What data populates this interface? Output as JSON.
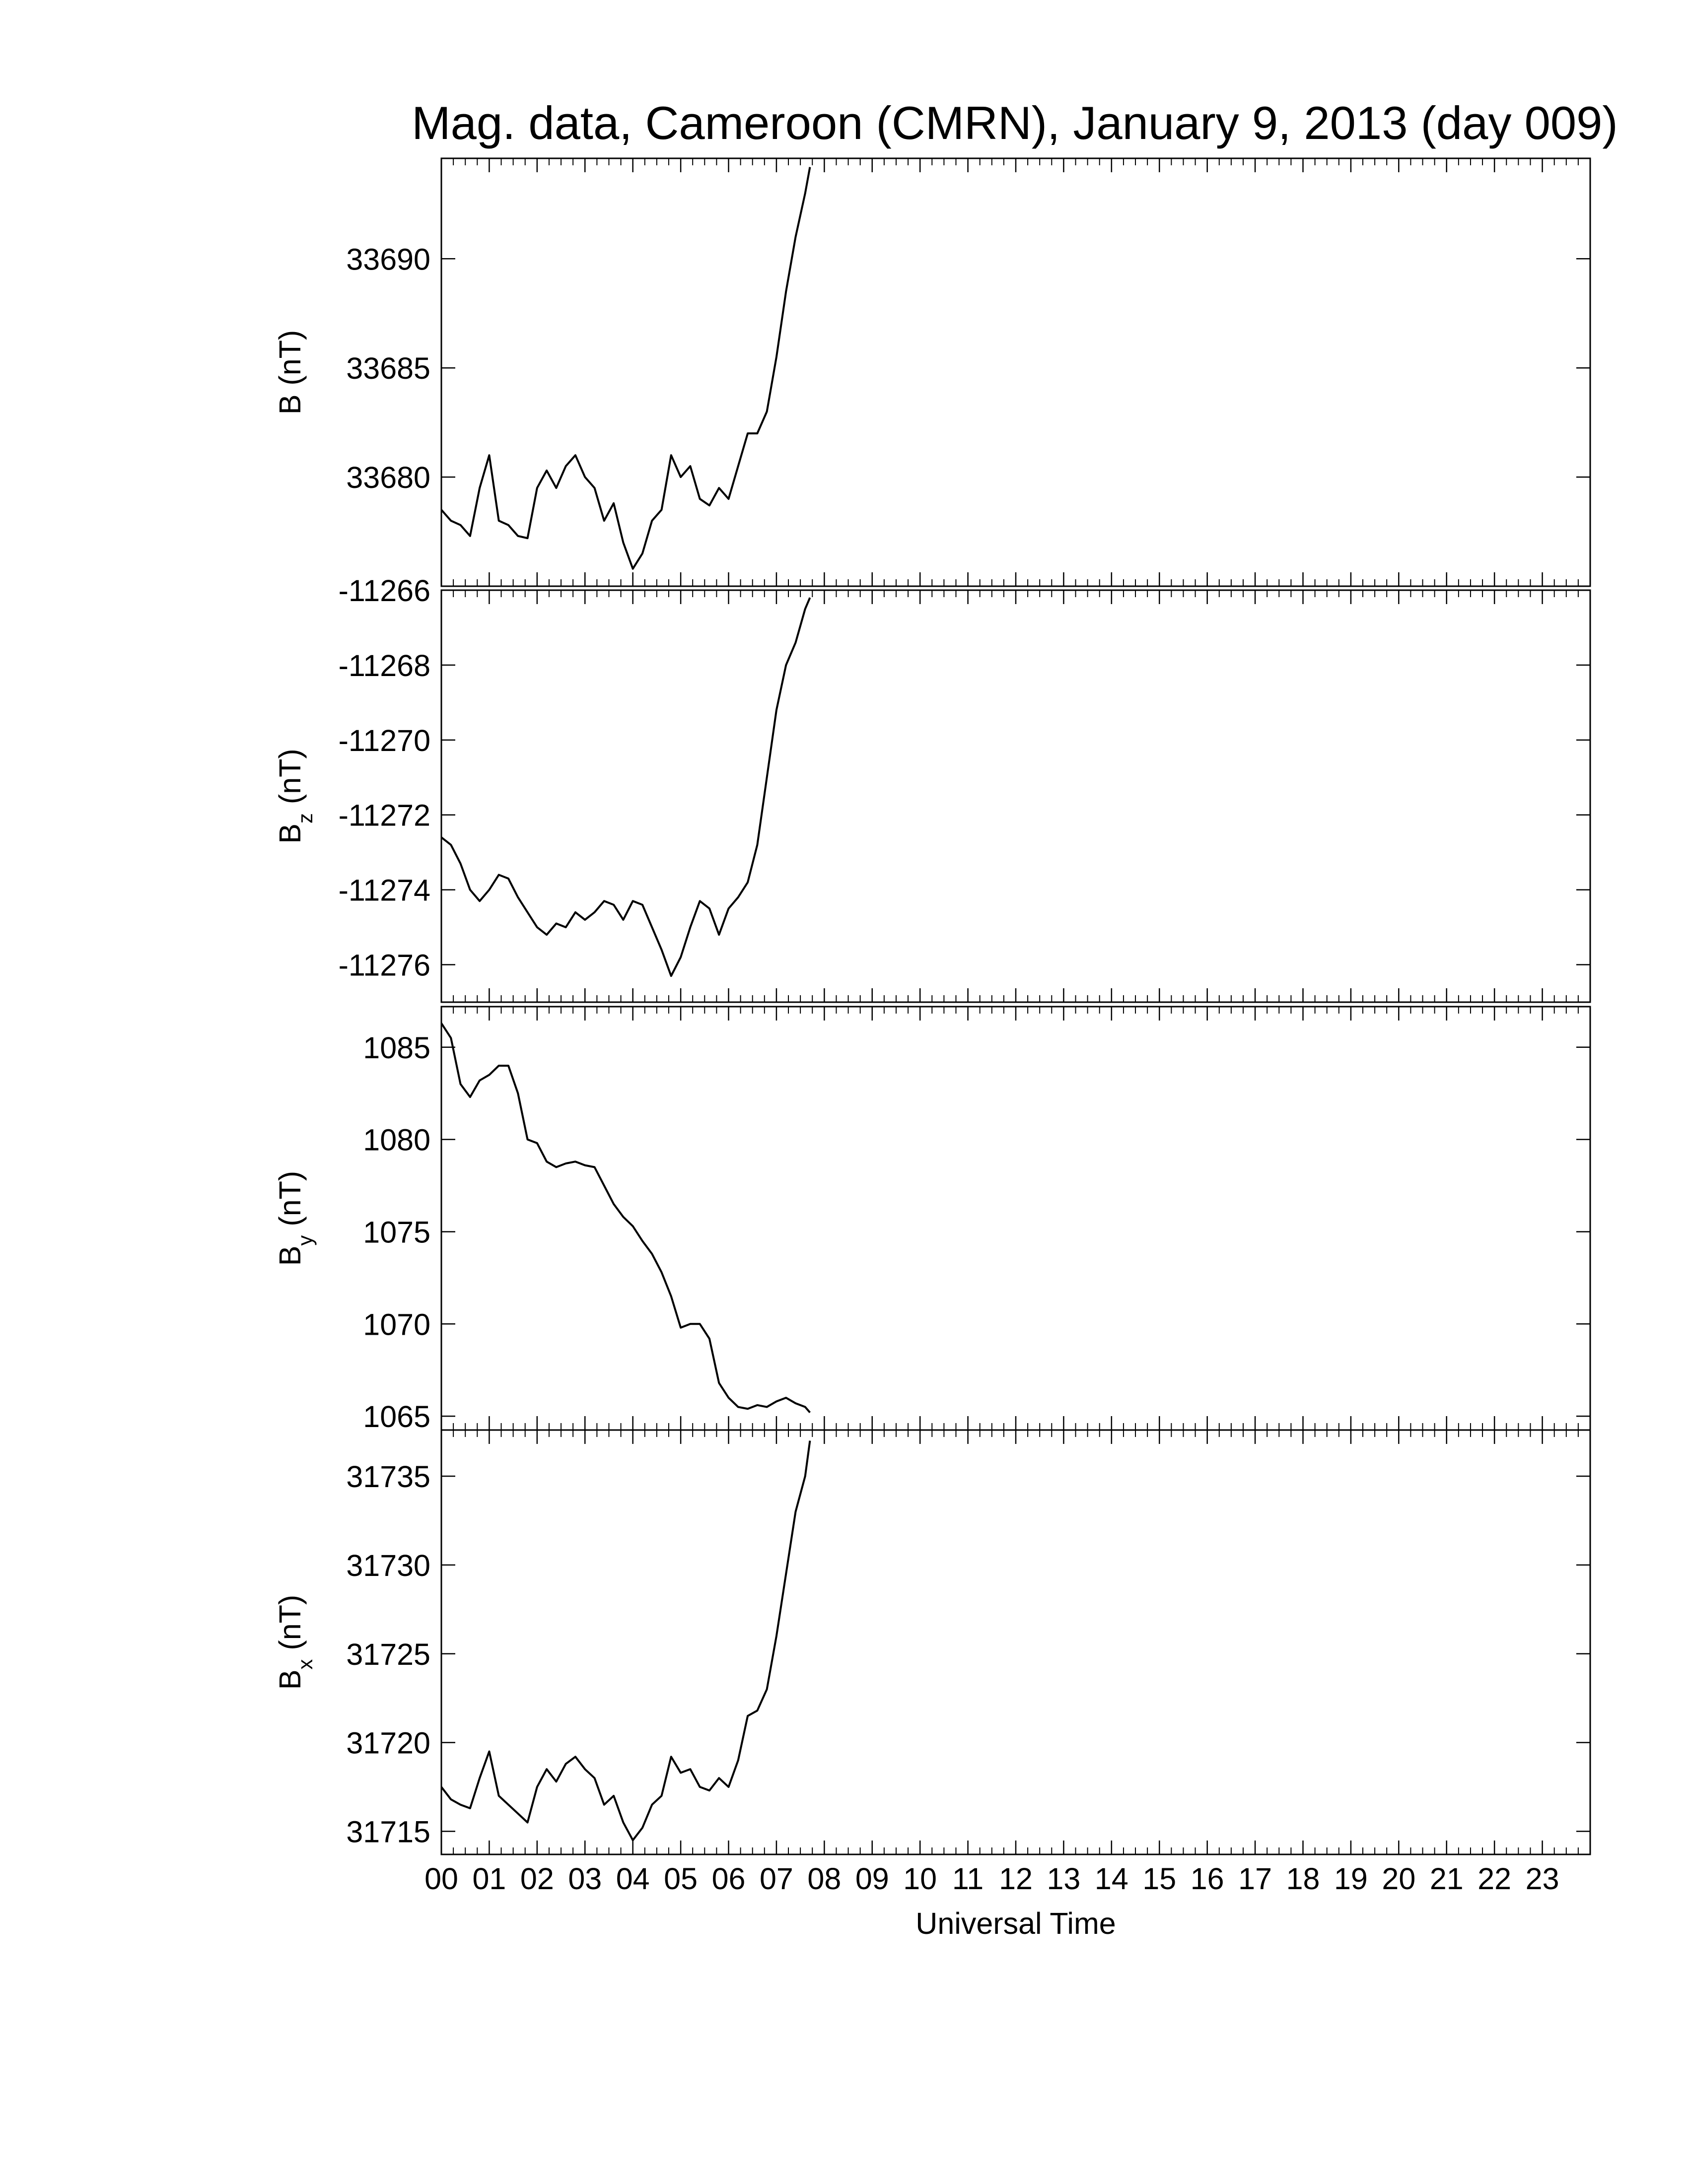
{
  "chart_data": [
    {
      "type": "line",
      "title": "Mag. data, Cameroon (CMRN), January 9, 2013 (day 009)",
      "ylabel": "B",
      "ylabel_unit": "(nT)",
      "color": "#000000",
      "xlim": [
        0,
        24
      ],
      "xticks": [
        0,
        1,
        2,
        3,
        4,
        5,
        6,
        7,
        8,
        9,
        10,
        11,
        12,
        13,
        14,
        15,
        16,
        17,
        18,
        19,
        20,
        21,
        22,
        23
      ],
      "x_minor_per_major": 4,
      "ylim": [
        33675,
        33694.6
      ],
      "yticks": [
        33680,
        33685,
        33690
      ],
      "x": [
        0,
        0.2,
        0.4,
        0.6,
        0.8,
        1.0,
        1.2,
        1.4,
        1.6,
        1.8,
        2.0,
        2.2,
        2.4,
        2.6,
        2.8,
        3.0,
        3.2,
        3.4,
        3.6,
        3.8,
        4.0,
        4.2,
        4.4,
        4.6,
        4.8,
        5.0,
        5.2,
        5.4,
        5.6,
        5.8,
        6.0,
        6.2,
        6.4,
        6.6,
        6.8,
        7.0,
        7.2,
        7.4,
        7.6,
        7.7
      ],
      "values": [
        33678.5,
        33678.0,
        33677.8,
        33677.3,
        33679.5,
        33681.0,
        33678.0,
        33677.8,
        33677.3,
        33677.2,
        33679.5,
        33680.3,
        33679.5,
        33680.5,
        33681.0,
        33680.0,
        33679.5,
        33678.0,
        33678.8,
        33677.0,
        33675.8,
        33676.5,
        33678.0,
        33678.5,
        33681.0,
        33680.0,
        33680.5,
        33679.0,
        33678.7,
        33679.5,
        33679.0,
        33680.5,
        33682.0,
        33682.0,
        33683.0,
        33685.5,
        33688.5,
        33691.0,
        33693.0,
        33694.2
      ]
    },
    {
      "type": "line",
      "ylabel": "B",
      "ylabel_sub": "z",
      "ylabel_unit": "(nT)",
      "color": "#000000",
      "xlim": [
        0,
        24
      ],
      "xticks": [
        0,
        1,
        2,
        3,
        4,
        5,
        6,
        7,
        8,
        9,
        10,
        11,
        12,
        13,
        14,
        15,
        16,
        17,
        18,
        19,
        20,
        21,
        22,
        23
      ],
      "x_minor_per_major": 4,
      "ylim": [
        -11277,
        -11266
      ],
      "yticks": [
        -11276,
        -11274,
        -11272,
        -11270,
        -11268,
        -11266
      ],
      "x": [
        0,
        0.2,
        0.4,
        0.6,
        0.8,
        1.0,
        1.2,
        1.4,
        1.6,
        1.8,
        2.0,
        2.2,
        2.4,
        2.6,
        2.8,
        3.0,
        3.2,
        3.4,
        3.6,
        3.8,
        4.0,
        4.2,
        4.4,
        4.6,
        4.8,
        5.0,
        5.2,
        5.4,
        5.6,
        5.8,
        6.0,
        6.2,
        6.4,
        6.6,
        6.8,
        7.0,
        7.2,
        7.4,
        7.6,
        7.7
      ],
      "values": [
        -11272.6,
        -11272.8,
        -11273.3,
        -11274.0,
        -11274.3,
        -11274.0,
        -11273.6,
        -11273.7,
        -11274.2,
        -11274.6,
        -11275.0,
        -11275.2,
        -11274.9,
        -11275.0,
        -11274.6,
        -11274.8,
        -11274.6,
        -11274.3,
        -11274.4,
        -11274.8,
        -11274.3,
        -11274.4,
        -11275.0,
        -11275.6,
        -11276.3,
        -11275.8,
        -11275.0,
        -11274.3,
        -11274.5,
        -11275.2,
        -11274.5,
        -11274.2,
        -11273.8,
        -11272.8,
        -11271.0,
        -11269.2,
        -11268.0,
        -11267.4,
        -11266.5,
        -11266.2
      ]
    },
    {
      "type": "line",
      "ylabel": "B",
      "ylabel_sub": "y",
      "ylabel_unit": "(nT)",
      "color": "#000000",
      "xlim": [
        0,
        24
      ],
      "xticks": [
        0,
        1,
        2,
        3,
        4,
        5,
        6,
        7,
        8,
        9,
        10,
        11,
        12,
        13,
        14,
        15,
        16,
        17,
        18,
        19,
        20,
        21,
        22,
        23
      ],
      "x_minor_per_major": 4,
      "ylim": [
        1064.25,
        1087.2
      ],
      "yticks": [
        1065,
        1070,
        1075,
        1080,
        1085
      ],
      "x": [
        0,
        0.2,
        0.4,
        0.6,
        0.8,
        1.0,
        1.2,
        1.4,
        1.6,
        1.8,
        2.0,
        2.2,
        2.4,
        2.6,
        2.8,
        3.0,
        3.2,
        3.4,
        3.6,
        3.8,
        4.0,
        4.2,
        4.4,
        4.6,
        4.8,
        5.0,
        5.2,
        5.4,
        5.6,
        5.8,
        6.0,
        6.2,
        6.4,
        6.6,
        6.8,
        7.0,
        7.2,
        7.4,
        7.6,
        7.7
      ],
      "values": [
        1086.3,
        1085.5,
        1083.0,
        1082.3,
        1083.2,
        1083.5,
        1084.0,
        1084.0,
        1082.5,
        1080.0,
        1079.8,
        1078.8,
        1078.5,
        1078.7,
        1078.8,
        1078.6,
        1078.5,
        1077.5,
        1076.5,
        1075.8,
        1075.3,
        1074.5,
        1073.8,
        1072.8,
        1071.5,
        1069.8,
        1070.0,
        1070.0,
        1069.2,
        1066.8,
        1066.0,
        1065.5,
        1065.4,
        1065.6,
        1065.5,
        1065.8,
        1066.0,
        1065.7,
        1065.5,
        1065.2
      ]
    },
    {
      "type": "line",
      "ylabel": "B",
      "ylabel_sub": "x",
      "ylabel_unit": "(nT)",
      "xlabel": "Universal Time",
      "color": "#000000",
      "xlim": [
        0,
        24
      ],
      "xticks": [
        {
          "value": 0,
          "label": "00"
        },
        {
          "value": 1,
          "label": "01"
        },
        {
          "value": 2,
          "label": "02"
        },
        {
          "value": 3,
          "label": "03"
        },
        {
          "value": 4,
          "label": "04"
        },
        {
          "value": 5,
          "label": "05"
        },
        {
          "value": 6,
          "label": "06"
        },
        {
          "value": 7,
          "label": "07"
        },
        {
          "value": 8,
          "label": "08"
        },
        {
          "value": 9,
          "label": "09"
        },
        {
          "value": 10,
          "label": "10"
        },
        {
          "value": 11,
          "label": "11"
        },
        {
          "value": 12,
          "label": "12"
        },
        {
          "value": 13,
          "label": "13"
        },
        {
          "value": 14,
          "label": "14"
        },
        {
          "value": 15,
          "label": "15"
        },
        {
          "value": 16,
          "label": "16"
        },
        {
          "value": 17,
          "label": "17"
        },
        {
          "value": 18,
          "label": "18"
        },
        {
          "value": 19,
          "label": "19"
        },
        {
          "value": 20,
          "label": "20"
        },
        {
          "value": 21,
          "label": "21"
        },
        {
          "value": 22,
          "label": "22"
        },
        {
          "value": 23,
          "label": "23"
        }
      ],
      "x_minor_per_major": 4,
      "ylim": [
        31713.7,
        31737.6
      ],
      "yticks": [
        31715,
        31720,
        31725,
        31730,
        31735
      ],
      "x": [
        0,
        0.2,
        0.4,
        0.6,
        0.8,
        1.0,
        1.2,
        1.4,
        1.6,
        1.8,
        2.0,
        2.2,
        2.4,
        2.6,
        2.8,
        3.0,
        3.2,
        3.4,
        3.6,
        3.8,
        4.0,
        4.2,
        4.4,
        4.6,
        4.8,
        5.0,
        5.2,
        5.4,
        5.6,
        5.8,
        6.0,
        6.2,
        6.4,
        6.6,
        6.8,
        7.0,
        7.2,
        7.4,
        7.6,
        7.7
      ],
      "values": [
        31717.5,
        31716.8,
        31716.5,
        31716.3,
        31718.0,
        31719.5,
        31717.0,
        31716.5,
        31716.0,
        31715.5,
        31717.5,
        31718.5,
        31717.8,
        31718.8,
        31719.2,
        31718.5,
        31718.0,
        31716.5,
        31717.0,
        31715.5,
        31714.5,
        31715.2,
        31716.5,
        31717.0,
        31719.2,
        31718.3,
        31718.5,
        31717.5,
        31717.3,
        31718.0,
        31717.5,
        31719.0,
        31721.5,
        31721.8,
        31723.0,
        31726.0,
        31729.5,
        31733.0,
        31735.0,
        31737.0
      ]
    }
  ]
}
